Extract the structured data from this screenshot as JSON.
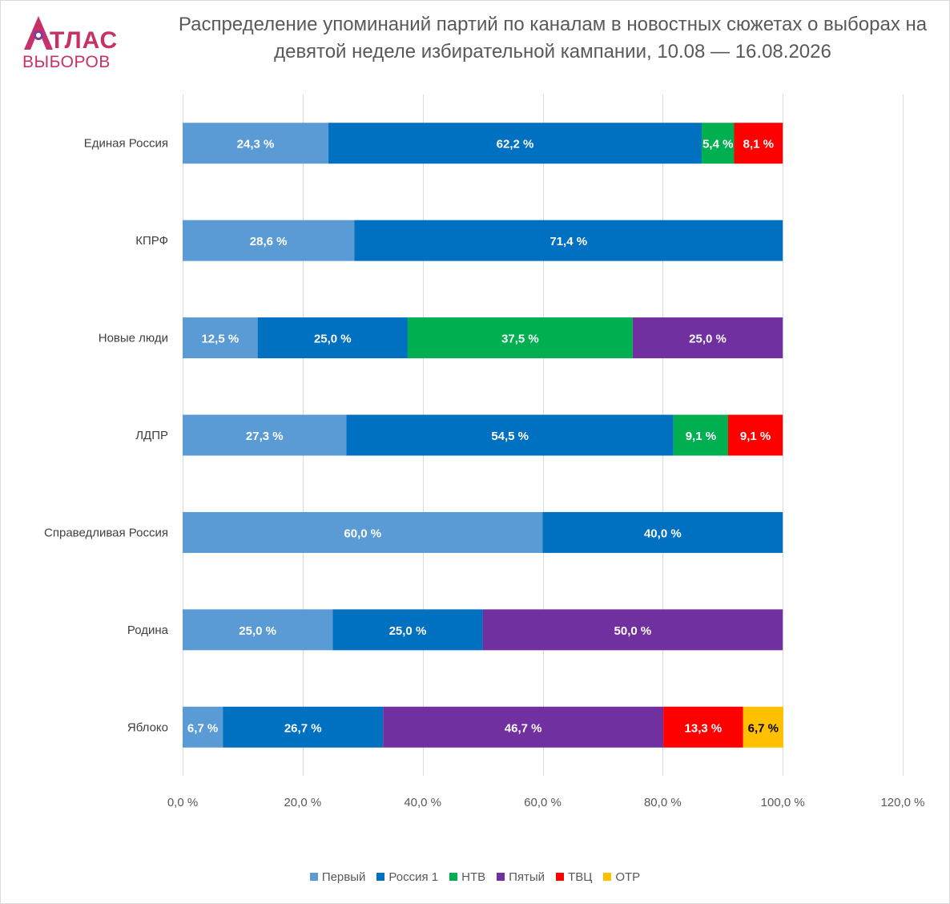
{
  "logo": {
    "top_text": "ТЛАС",
    "bottom_text": "ВЫБОРОВ",
    "brand_color": "#c8306a"
  },
  "chart_data": {
    "type": "bar",
    "orientation": "horizontal",
    "stacked": true,
    "title": "Распределение упоминаний партий по каналам в новостных сюжетах о выборах на девятой неделе избирательной кампании, 10.08 — 16.08.2026",
    "categories": [
      "Единая Россия",
      "КПРФ",
      "Новые люди",
      "ЛДПР",
      "Справедливая Россия",
      "Родина",
      "Яблоко"
    ],
    "xlim": [
      0,
      120
    ],
    "xticks": [
      0,
      20,
      40,
      60,
      80,
      100,
      120
    ],
    "xtick_labels": [
      "0,0 %",
      "20,0 %",
      "40,0 %",
      "60,0 %",
      "80,0 %",
      "100,0 %",
      "120,0 %"
    ],
    "grid": true,
    "legend_position": "bottom",
    "series": [
      {
        "name": "Первый",
        "color": "#5b9bd5",
        "label_color": "#ffffff",
        "values": [
          24.3,
          28.6,
          12.5,
          27.3,
          60.0,
          25.0,
          6.7
        ]
      },
      {
        "name": "Россия 1",
        "color": "#0070c0",
        "label_color": "#ffffff",
        "values": [
          62.2,
          71.4,
          25.0,
          54.5,
          40.0,
          25.0,
          26.7
        ]
      },
      {
        "name": "НТВ",
        "color": "#00b050",
        "label_color": "#ffffff",
        "values": [
          5.4,
          0,
          37.5,
          9.1,
          0,
          0,
          0
        ]
      },
      {
        "name": "Пятый",
        "color": "#7030a0",
        "label_color": "#ffffff",
        "values": [
          0,
          0,
          25.0,
          0,
          0,
          50.0,
          46.7
        ]
      },
      {
        "name": "ТВЦ",
        "color": "#ff0000",
        "label_color": "#ffffff",
        "values": [
          8.1,
          0,
          0,
          9.1,
          0,
          0,
          13.3
        ]
      },
      {
        "name": "ОТР",
        "color": "#ffc000",
        "label_color": "#000000",
        "values": [
          0,
          0,
          0,
          0,
          0,
          0,
          6.7
        ]
      }
    ]
  }
}
